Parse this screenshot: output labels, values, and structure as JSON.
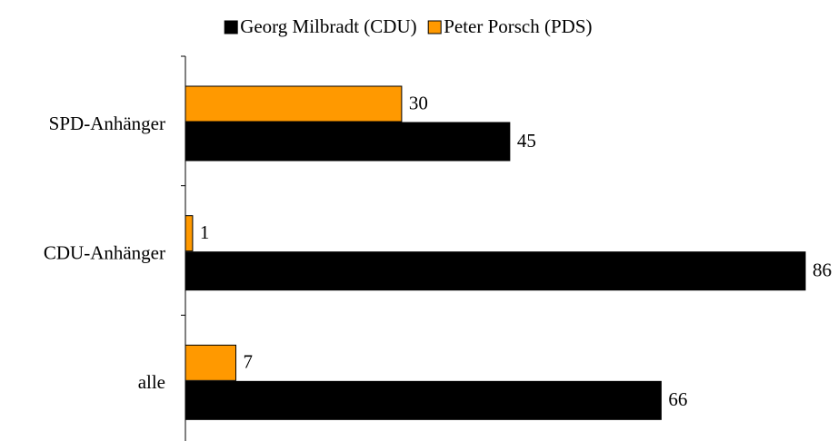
{
  "chart_data": {
    "type": "hbar",
    "categories": [
      "SPD-Anhänger",
      "CDU-Anhänger",
      "alle"
    ],
    "series": [
      {
        "name": "Georg Milbradt (CDU)",
        "color": "#000000",
        "values": [
          45,
          86,
          66
        ]
      },
      {
        "name": "Peter Porsch (PDS)",
        "color": "#ff9900",
        "values": [
          30,
          1,
          7
        ]
      }
    ],
    "xlim": [
      0,
      86
    ],
    "legend": "top"
  }
}
